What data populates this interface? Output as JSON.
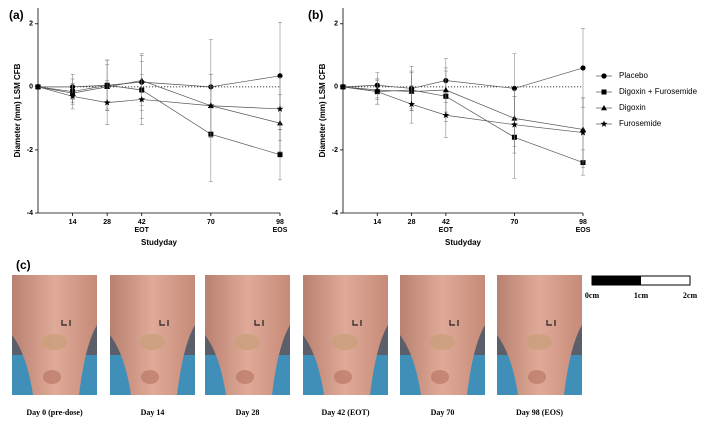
{
  "chart_data": [
    {
      "type": "line",
      "panel_label": "(a)",
      "ylabel": "Diameter (mm) LSM CFB",
      "xlabel": "Studyday",
      "x": [
        0,
        14,
        28,
        42,
        70,
        98
      ],
      "xlim": [
        0,
        98
      ],
      "xticks": [
        14,
        28,
        42,
        70,
        98
      ],
      "xtick_notes": [
        {
          "value": 42,
          "label": "EOT"
        },
        {
          "value": 98,
          "label": "EOS"
        }
      ],
      "ylim": [
        -4,
        2.5
      ],
      "yticks": [
        -4,
        -2,
        0,
        2
      ],
      "reference_line": 0,
      "series": [
        {
          "marker": "circle",
          "color": "#000000",
          "values": [
            0,
            0,
            0.05,
            0.15,
            0,
            0.35
          ],
          "errors": [
            0,
            0.4,
            0.8,
            0.9,
            1.5,
            1.7
          ]
        },
        {
          "marker": "square",
          "color": "#000000",
          "values": [
            0,
            -0.15,
            0.05,
            -0.1,
            -1.5,
            -2.15
          ],
          "errors": [
            0,
            0.4,
            0.8,
            0.9,
            1.5,
            0.8
          ]
        },
        {
          "marker": "triangle",
          "color": "#000000",
          "values": [
            0,
            -0.2,
            0,
            0.2,
            -0.6,
            -1.15
          ],
          "errors": [
            0,
            0.3,
            0.7,
            0.8,
            1.0,
            0.9
          ]
        },
        {
          "marker": "star",
          "color": "#000000",
          "values": [
            0,
            -0.3,
            -0.5,
            -0.4,
            -0.6,
            -0.7
          ],
          "errors": [
            0,
            0.4,
            0.7,
            0.8,
            1.0,
            1.0
          ]
        }
      ]
    },
    {
      "type": "line",
      "panel_label": "(b)",
      "ylabel": "Diameter (mm) LSM CFB",
      "xlabel": "Studyday",
      "x": [
        0,
        14,
        28,
        42,
        70,
        98
      ],
      "xlim": [
        0,
        98
      ],
      "xticks": [
        14,
        28,
        42,
        70,
        98
      ],
      "xtick_notes": [
        {
          "value": 42,
          "label": "EOT"
        },
        {
          "value": 98,
          "label": "EOS"
        }
      ],
      "ylim": [
        -4,
        2.5
      ],
      "yticks": [
        -4,
        -2,
        0,
        2
      ],
      "reference_line": 0,
      "series": [
        {
          "marker": "circle",
          "color": "#000000",
          "values": [
            0,
            0.05,
            -0.05,
            0.2,
            -0.05,
            0.6
          ],
          "errors": [
            0,
            0.4,
            0.7,
            0.7,
            1.1,
            1.25
          ]
        },
        {
          "marker": "square",
          "color": "#000000",
          "values": [
            0,
            -0.15,
            -0.1,
            -0.3,
            -1.6,
            -2.4
          ],
          "errors": [
            0,
            0.4,
            0.6,
            0.8,
            1.3,
            0.4
          ]
        },
        {
          "marker": "triangle",
          "color": "#000000",
          "values": [
            0,
            -0.1,
            -0.15,
            -0.1,
            -1.0,
            -1.35
          ],
          "errors": [
            0,
            0.3,
            0.6,
            0.7,
            0.9,
            1.0
          ]
        },
        {
          "marker": "star",
          "color": "#000000",
          "values": [
            0,
            -0.15,
            -0.55,
            -0.9,
            -1.2,
            -1.45
          ],
          "errors": [
            0,
            0.4,
            0.6,
            0.7,
            0.9,
            1.1
          ]
        }
      ]
    }
  ],
  "legend": {
    "entries": [
      "Placebo",
      "Digoxin + Furosemide",
      "Digoxin",
      "Furosemide"
    ]
  },
  "photos": {
    "panel_label": "(c)",
    "captions": [
      "Day 0 (pre-dose)",
      "Day 14",
      "Day 28",
      "Day 42 (EOT)",
      "Day 70",
      "Day 98 (EOS)"
    ]
  },
  "scale_bar": {
    "labels": [
      "0cm",
      "1cm",
      "2cm"
    ]
  }
}
